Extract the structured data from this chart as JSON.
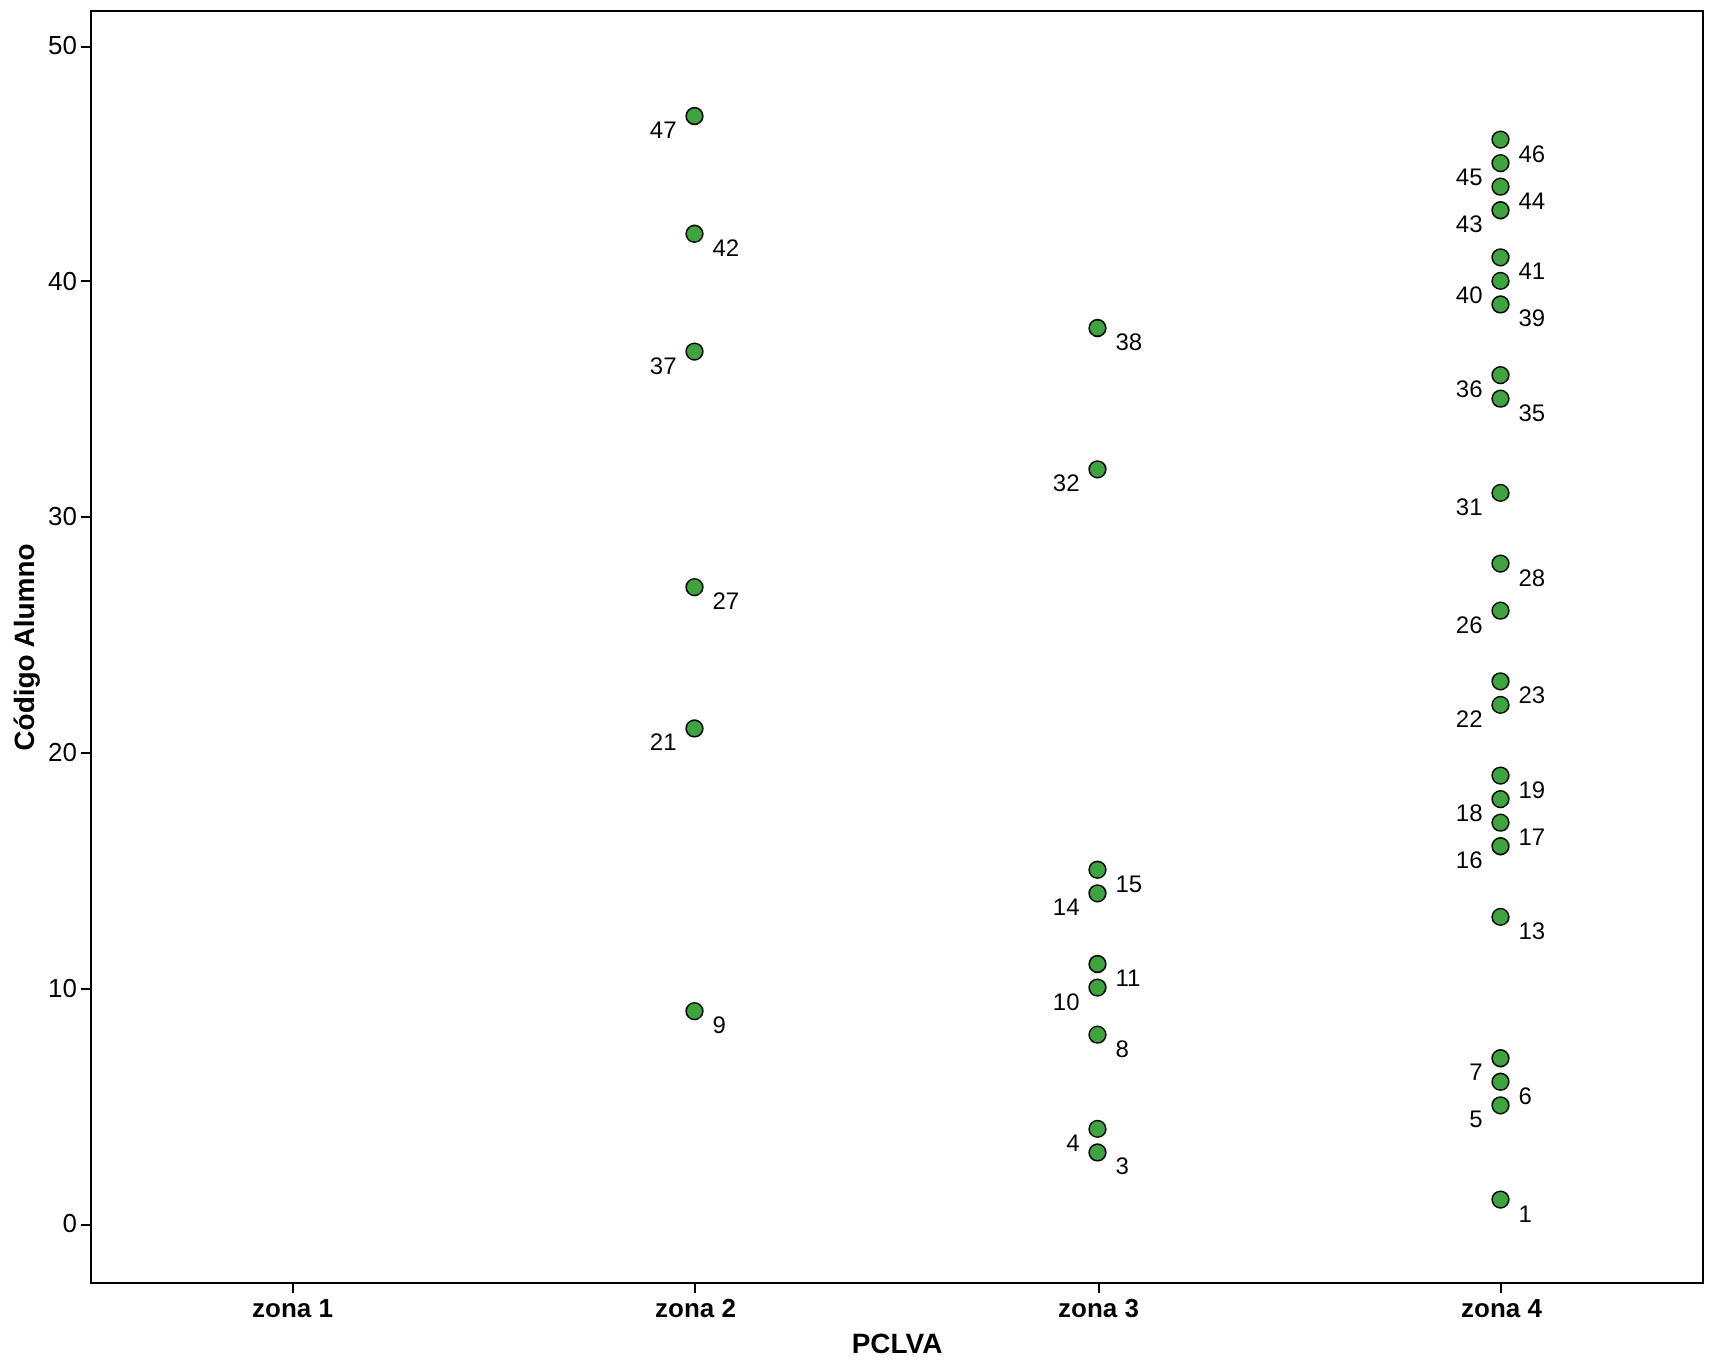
{
  "chart_data": {
    "type": "scatter",
    "categories": [
      "zona 1",
      "zona 2",
      "zona 3",
      "zona 4"
    ],
    "xlabel": "PCLVA",
    "ylabel": "Código Alumno",
    "ylim": [
      -2.5,
      51.5
    ],
    "yticks": [
      0,
      10,
      20,
      30,
      40,
      50
    ],
    "grid": false,
    "legend": false,
    "marker": "circle",
    "data_labels": true,
    "series": [
      {
        "color": "#3fa33f",
        "x": [
          "zona 2",
          "zona 2",
          "zona 2",
          "zona 2",
          "zona 2",
          "zona 2",
          "zona 3",
          "zona 3",
          "zona 3",
          "zona 3",
          "zona 3",
          "zona 3",
          "zona 3",
          "zona 3",
          "zona 3",
          "zona 4",
          "zona 4",
          "zona 4",
          "zona 4",
          "zona 4",
          "zona 4",
          "zona 4",
          "zona 4",
          "zona 4",
          "zona 4",
          "zona 4",
          "zona 4",
          "zona 4",
          "zona 4",
          "zona 4",
          "zona 4",
          "zona 4",
          "zona 4",
          "zona 4",
          "zona 4",
          "zona 4",
          "zona 4",
          "zona 4"
        ],
        "values": [
          9,
          21,
          27,
          37,
          42,
          47,
          3,
          4,
          8,
          10,
          11,
          14,
          15,
          32,
          38,
          1,
          5,
          6,
          7,
          13,
          16,
          17,
          18,
          19,
          22,
          23,
          26,
          28,
          31,
          35,
          36,
          39,
          40,
          41,
          43,
          44,
          45,
          46
        ]
      }
    ]
  }
}
